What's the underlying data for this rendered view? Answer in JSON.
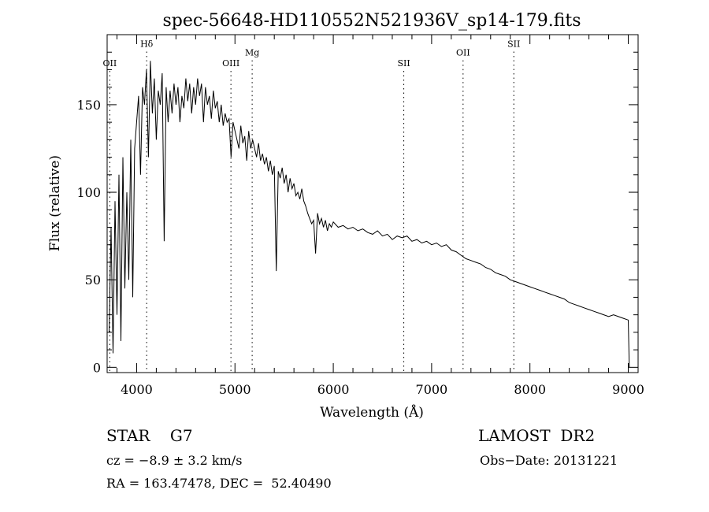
{
  "chart_data": {
    "type": "line",
    "title": "spec-56648-HD110552N521936V_sp14-179.fits",
    "xlabel": "Wavelength (Å)",
    "ylabel": "Flux (relative)",
    "xlim": [
      3700,
      9100
    ],
    "ylim": [
      -3,
      190
    ],
    "xticks": [
      4000,
      5000,
      6000,
      7000,
      8000,
      9000
    ],
    "yticks": [
      0,
      50,
      100,
      150
    ],
    "grid": false,
    "series": [
      {
        "x": [
          3720,
          3740,
          3760,
          3780,
          3800,
          3820,
          3840,
          3860,
          3880,
          3900,
          3920,
          3940,
          3960,
          3980,
          4000,
          4020,
          4040,
          4060,
          4080,
          4100,
          4120,
          4140,
          4160,
          4180,
          4200,
          4220,
          4240,
          4260,
          4280,
          4300,
          4320,
          4340,
          4360,
          4380,
          4400,
          4420,
          4440,
          4460,
          4480,
          4500,
          4520,
          4540,
          4560,
          4580,
          4600,
          4620,
          4640,
          4660,
          4680,
          4700,
          4720,
          4740,
          4760,
          4780,
          4800,
          4820,
          4840,
          4860,
          4880,
          4900,
          4920,
          4940,
          4960,
          4980,
          5000,
          5020,
          5040,
          5060,
          5080,
          5100,
          5120,
          5140,
          5160,
          5180,
          5200,
          5220,
          5240,
          5260,
          5280,
          5300,
          5320,
          5340,
          5360,
          5380,
          5400,
          5420,
          5440,
          5460,
          5480,
          5500,
          5520,
          5540,
          5560,
          5580,
          5600,
          5620,
          5640,
          5660,
          5680,
          5700,
          5720,
          5740,
          5760,
          5780,
          5800,
          5820,
          5840,
          5860,
          5880,
          5900,
          5920,
          5940,
          5960,
          5980,
          6000,
          6050,
          6100,
          6150,
          6200,
          6250,
          6300,
          6350,
          6400,
          6450,
          6500,
          6550,
          6600,
          6650,
          6700,
          6750,
          6800,
          6850,
          6900,
          6950,
          7000,
          7050,
          7100,
          7150,
          7200,
          7250,
          7300,
          7350,
          7400,
          7450,
          7500,
          7550,
          7600,
          7650,
          7700,
          7750,
          7800,
          7850,
          7900,
          7950,
          8000,
          8050,
          8100,
          8150,
          8200,
          8250,
          8300,
          8350,
          8400,
          8450,
          8500,
          8550,
          8600,
          8650,
          8700,
          8750,
          8800,
          8850,
          8900,
          8950,
          9000,
          9010
        ],
        "y": [
          20,
          80,
          8,
          95,
          30,
          110,
          15,
          120,
          45,
          100,
          50,
          130,
          40,
          125,
          140,
          155,
          110,
          160,
          150,
          170,
          120,
          175,
          145,
          165,
          130,
          158,
          150,
          168,
          72,
          160,
          140,
          158,
          145,
          162,
          150,
          160,
          140,
          155,
          148,
          165,
          152,
          162,
          145,
          160,
          150,
          165,
          155,
          162,
          140,
          160,
          150,
          155,
          142,
          158,
          148,
          152,
          140,
          150,
          138,
          145,
          140,
          142,
          120,
          140,
          135,
          130,
          125,
          138,
          128,
          132,
          118,
          135,
          125,
          130,
          125,
          120,
          128,
          118,
          122,
          116,
          120,
          112,
          118,
          110,
          115,
          55,
          112,
          108,
          114,
          105,
          110,
          100,
          108,
          102,
          105,
          98,
          100,
          96,
          102,
          95,
          92,
          88,
          85,
          82,
          84,
          65,
          88,
          82,
          85,
          80,
          84,
          78,
          82,
          80,
          83,
          80,
          81,
          79,
          80,
          78,
          79,
          77,
          76,
          78,
          75,
          76,
          73,
          75,
          74,
          75,
          72,
          73,
          71,
          72,
          70,
          71,
          69,
          70,
          67,
          66,
          64,
          62,
          61,
          60,
          59,
          57,
          56,
          54,
          53,
          52,
          50,
          49,
          48,
          47,
          46,
          45,
          44,
          43,
          42,
          41,
          40,
          39,
          37,
          36,
          35,
          34,
          33,
          32,
          31,
          30,
          29,
          30,
          29,
          28,
          27,
          0
        ]
      }
    ],
    "annotations": [
      {
        "label": "OII",
        "x": 3727,
        "label_y": 172
      },
      {
        "label": "Hδ",
        "x": 4102,
        "label_y": 183
      },
      {
        "label": "OIII",
        "x": 4959,
        "label_y": 172
      },
      {
        "label": "Mg",
        "x": 5175,
        "label_y": 178
      },
      {
        "label": "SII",
        "x": 6717,
        "label_y": 172
      },
      {
        "label": "OII",
        "x": 7320,
        "label_y": 178
      },
      {
        "label": "SII",
        "x": 7836,
        "label_y": 183
      }
    ]
  },
  "info": {
    "star_line": "STAR    G7",
    "survey": "LAMOST  DR2",
    "cz_line": "cz = −8.9 ± 3.2 km/s",
    "obs_date": "Obs−Date: 20131221",
    "radec_line": "RA = 163.47478, DEC =  52.40490"
  }
}
